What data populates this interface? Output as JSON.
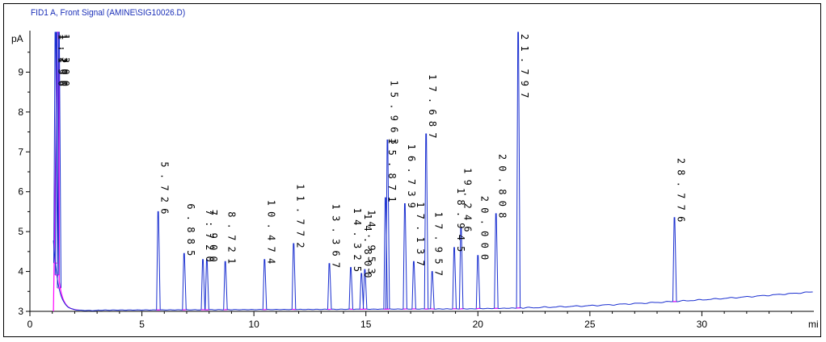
{
  "chart_data": {
    "type": "line",
    "title": "FID1 A, Front Signal (AMINE\\SIG10026.D)",
    "ylabel": "pA",
    "xlabel": "mi",
    "xlim": [
      0,
      35
    ],
    "ylim": [
      3,
      10
    ],
    "x_ticks": [
      "0",
      "5",
      "10",
      "15",
      "20",
      "25",
      "30"
    ],
    "y_ticks": [
      "3",
      "4",
      "5",
      "6",
      "7",
      "8",
      "9"
    ],
    "grid": false,
    "colors": {
      "signal": "#1a2fd0",
      "baseline": "#ff00ff",
      "axis": "#000000"
    },
    "peaks": [
      {
        "rt": 1.136,
        "label": "1.136",
        "height": 10
      },
      {
        "rt": 1.2,
        "label": "1.200",
        "height": 10
      },
      {
        "rt": 1.3,
        "label": "1.300",
        "height": 10
      },
      {
        "rt": 5.726,
        "label": "5.726",
        "height": 5.5
      },
      {
        "rt": 6.885,
        "label": "6.885",
        "height": 4.45
      },
      {
        "rt": 7.72,
        "label": "7.720",
        "height": 4.3
      },
      {
        "rt": 7.9,
        "label": "7.900",
        "height": 4.3
      },
      {
        "rt": 8.721,
        "label": "8.721",
        "height": 4.25
      },
      {
        "rt": 10.474,
        "label": "10.474",
        "height": 4.3
      },
      {
        "rt": 11.772,
        "label": "11.772",
        "height": 4.7
      },
      {
        "rt": 13.367,
        "label": "13.367",
        "height": 4.2
      },
      {
        "rt": 14.325,
        "label": "14.325",
        "height": 4.1
      },
      {
        "rt": 14.8,
        "label": "14.800",
        "height": 3.95
      },
      {
        "rt": 14.953,
        "label": "14.953",
        "height": 4.05
      },
      {
        "rt": 15.871,
        "label": "15.871",
        "height": 5.85
      },
      {
        "rt": 15.963,
        "label": "15.963",
        "height": 7.3
      },
      {
        "rt": 16.739,
        "label": "16.739",
        "height": 5.7
      },
      {
        "rt": 17.137,
        "label": "17.137",
        "height": 4.25
      },
      {
        "rt": 17.687,
        "label": "17.687",
        "height": 7.45
      },
      {
        "rt": 17.957,
        "label": "17.957",
        "height": 4.0
      },
      {
        "rt": 18.945,
        "label": "18.945",
        "height": 4.6
      },
      {
        "rt": 19.246,
        "label": "19.246",
        "height": 5.1
      },
      {
        "rt": 20.0,
        "label": "20.000",
        "height": 4.4
      },
      {
        "rt": 20.808,
        "label": "20.808",
        "height": 5.45
      },
      {
        "rt": 21.797,
        "label": "21.797",
        "height": 10
      },
      {
        "rt": 28.776,
        "label": "28.776",
        "height": 5.35
      }
    ]
  }
}
